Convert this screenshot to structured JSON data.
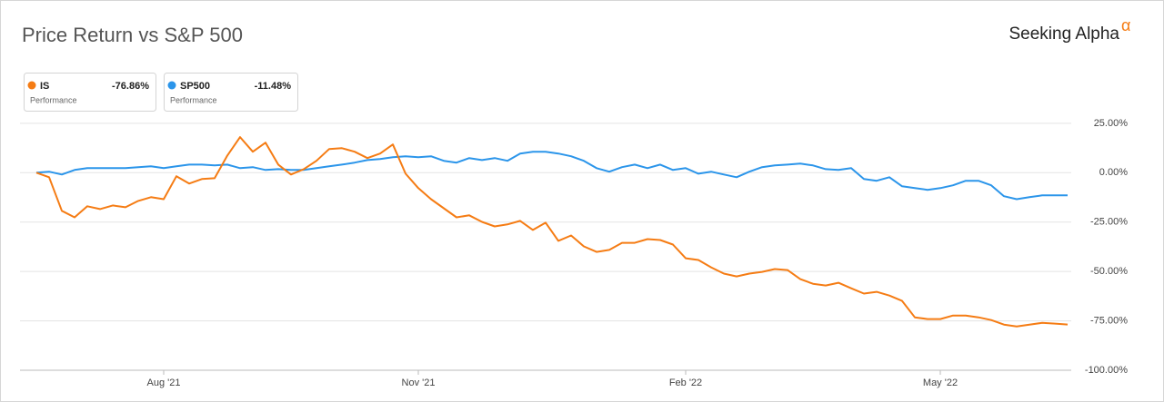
{
  "chart_data": {
    "type": "line",
    "title": "Price Return vs S&P 500",
    "brand": "Seeking Alpha",
    "brand_mark": "α",
    "categories": [
      null,
      null,
      null,
      null,
      null,
      null,
      null,
      null,
      null,
      null,
      "Aug '21",
      null,
      null,
      null,
      null,
      null,
      null,
      null,
      null,
      null,
      null,
      null,
      null,
      null,
      null,
      null,
      null,
      null,
      null,
      null,
      "Nov '21",
      null,
      null,
      null,
      null,
      null,
      null,
      null,
      null,
      null,
      null,
      null,
      null,
      null,
      null,
      null,
      null,
      null,
      null,
      null,
      null,
      "Feb '22",
      null,
      null,
      null,
      null,
      null,
      null,
      null,
      null,
      null,
      null,
      null,
      null,
      null,
      null,
      null,
      null,
      null,
      null,
      null,
      "May '22",
      null,
      null,
      null,
      null,
      null,
      null,
      null,
      null,
      null,
      null
    ],
    "series": [
      {
        "name": "IS",
        "color": "#f57c14",
        "change_label": "-76.86%",
        "change_caption": "Performance",
        "values": [
          0,
          -2.3,
          -19.3,
          -22.6,
          -17,
          -18.4,
          -16.6,
          -17.5,
          -14.3,
          -12.4,
          -13.4,
          -1.8,
          -5.5,
          -3.2,
          -2.8,
          8.7,
          18,
          10.6,
          15.2,
          4.1,
          -0.9,
          1.8,
          6,
          12,
          12.4,
          10.6,
          7.4,
          9.7,
          14.3,
          -0.5,
          -7.8,
          -13.4,
          -18,
          -22.6,
          -21.6,
          -24.9,
          -27.2,
          -26.2,
          -24.4,
          -29,
          -25.3,
          -34.5,
          -31.8,
          -37.3,
          -40.1,
          -39.1,
          -35.5,
          -35.5,
          -33.6,
          -34.1,
          -36.4,
          -43.3,
          -44.2,
          -47.9,
          -51.1,
          -52.5,
          -51.1,
          -50.2,
          -48.8,
          -49.3,
          -53.9,
          -56.2,
          -57.1,
          -55.7,
          -58.5,
          -61.2,
          -60.3,
          -62.2,
          -64.9,
          -73.2,
          -74.1,
          -74.1,
          -72.3,
          -72.3,
          -73.2,
          -74.6,
          -76.9,
          -77.8,
          -76.9,
          -76,
          -76.4,
          -76.86
        ]
      },
      {
        "name": "SP500",
        "color": "#2b95ea",
        "change_label": "-11.48%",
        "change_caption": "Performance",
        "values": [
          0,
          0.5,
          -0.9,
          1.4,
          2.3,
          2.3,
          2.3,
          2.3,
          2.8,
          3.2,
          2.3,
          3.2,
          4.1,
          4.1,
          3.7,
          4.1,
          2.3,
          2.8,
          1.4,
          1.8,
          1.4,
          1.4,
          2.3,
          3.2,
          4.1,
          5.1,
          6.4,
          6.9,
          7.8,
          8.3,
          7.8,
          8.3,
          6,
          5.1,
          7.4,
          6.4,
          7.4,
          6,
          9.7,
          10.6,
          10.6,
          9.7,
          8.3,
          6,
          2.3,
          0.5,
          2.8,
          4.1,
          2.3,
          4.1,
          1.4,
          2.3,
          -0.5,
          0.5,
          -0.9,
          -2.3,
          0.5,
          2.8,
          3.7,
          4.1,
          4.6,
          3.7,
          1.8,
          1.4,
          2.3,
          -3.2,
          -4.1,
          -2.3,
          -6.9,
          -7.8,
          -8.7,
          -7.8,
          -6.4,
          -4.1,
          -4.1,
          -6.4,
          -11.9,
          -13.4,
          -12.4,
          -11.5,
          -11.5,
          -11.48
        ]
      }
    ],
    "ylim": [
      -100,
      30
    ],
    "yticks": [
      {
        "value": 25,
        "label": "25.00%"
      },
      {
        "value": 0,
        "label": "0.00%"
      },
      {
        "value": -25,
        "label": "-25.00%"
      },
      {
        "value": -50,
        "label": "-50.00%"
      },
      {
        "value": -75,
        "label": "-75.00%"
      },
      {
        "value": -100,
        "label": "-100.00%"
      }
    ],
    "grid": true
  }
}
